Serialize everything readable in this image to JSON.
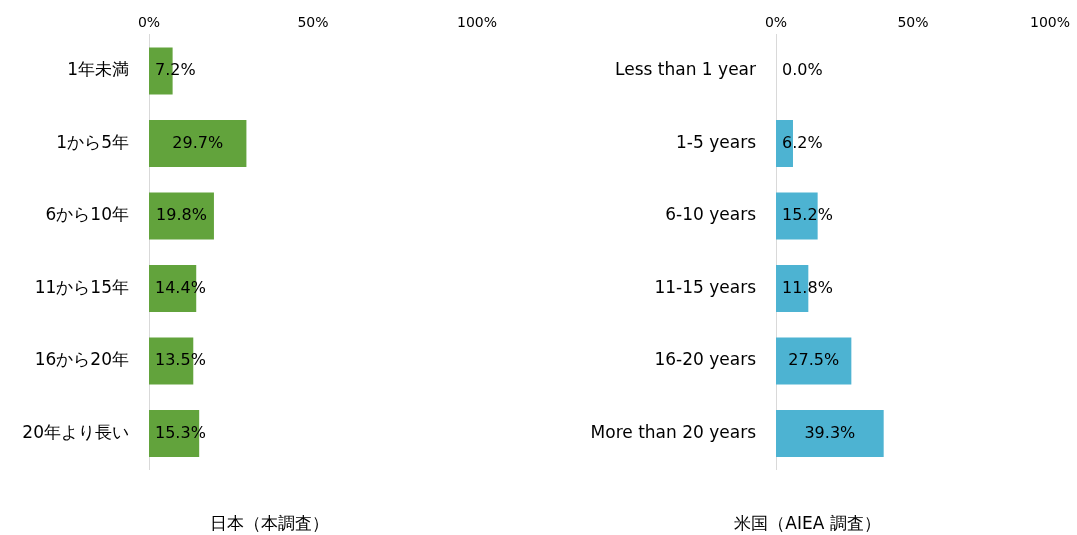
{
  "chart_data": [
    {
      "type": "bar",
      "orientation": "horizontal",
      "xlabel": "日本（本調査）",
      "categories": [
        "1年未満",
        "1から5年",
        "6から10年",
        "11から15年",
        "16から20年",
        "20年より長い"
      ],
      "values": [
        7.2,
        29.7,
        19.8,
        14.4,
        13.5,
        15.3
      ],
      "color": "#62a33c",
      "value_labels": [
        "7.2%",
        "29.7%",
        "19.8%",
        "14.4%",
        "13.5%",
        "15.3%"
      ],
      "xlim": [
        0,
        100
      ],
      "xticks": [
        {
          "value": 0,
          "label": "0%"
        },
        {
          "value": 50,
          "label": "50%"
        },
        {
          "value": 100,
          "label": "100%"
        }
      ],
      "grid": false,
      "legend": false
    },
    {
      "type": "bar",
      "orientation": "horizontal",
      "xlabel": "米国（AIEA 調査）",
      "categories": [
        "Less than 1 year",
        "1-5 years",
        "6-10 years",
        "11-15 years",
        "16-20 years",
        "More than 20 years"
      ],
      "values": [
        0.0,
        6.2,
        15.2,
        11.8,
        27.5,
        39.3
      ],
      "color": "#4db3d2",
      "value_labels": [
        "0.0%",
        "6.2%",
        "15.2%",
        "11.8%",
        "27.5%",
        "39.3%"
      ],
      "xlim": [
        0,
        100
      ],
      "xticks": [
        {
          "value": 0,
          "label": "0%"
        },
        {
          "value": 50,
          "label": "50%"
        },
        {
          "value": 100,
          "label": "100%"
        }
      ],
      "grid": false,
      "legend": false
    }
  ]
}
